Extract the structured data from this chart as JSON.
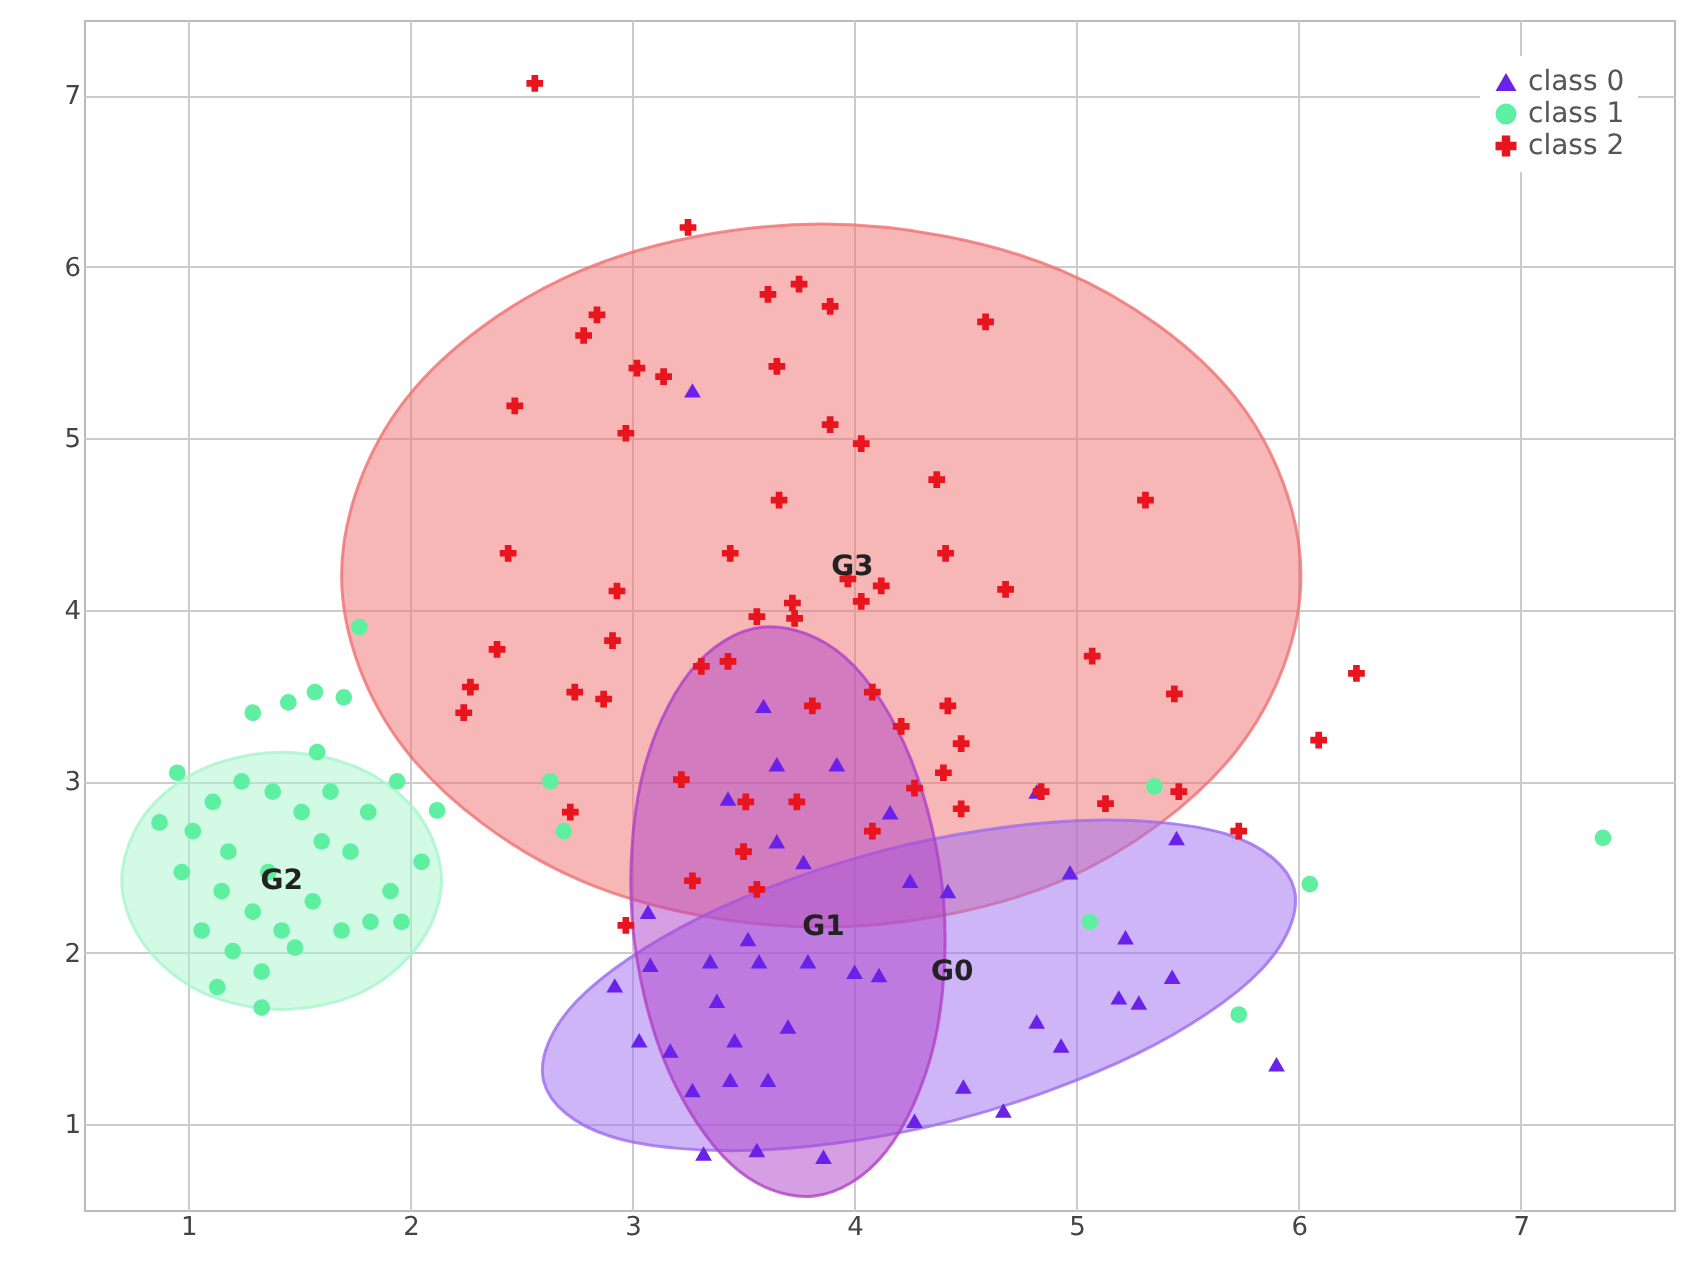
{
  "chart_data": {
    "type": "scatter",
    "xlim": [
      0.53,
      7.69
    ],
    "ylim": [
      0.5,
      7.44
    ],
    "xticks": [
      1,
      2,
      3,
      4,
      5,
      6,
      7
    ],
    "yticks": [
      1,
      2,
      3,
      4,
      5,
      6,
      7
    ],
    "grid": true,
    "legend": "top right",
    "annotations": [
      {
        "text": "G0",
        "x": 4.44,
        "y": 1.89
      },
      {
        "text": "G1",
        "x": 3.86,
        "y": 2.15
      },
      {
        "text": "G2",
        "x": 1.42,
        "y": 2.42
      },
      {
        "text": "G3",
        "x": 3.99,
        "y": 4.25
      }
    ],
    "series": [
      {
        "type": "area",
        "color": "#f07070",
        "x": [
          6.01,
          5.72,
          4.93,
          3.85,
          2.77,
          1.98,
          1.69,
          1.98,
          2.77,
          3.85,
          4.93,
          5.72
        ],
        "values": [
          4.2,
          5.23,
          5.98,
          6.25,
          5.98,
          5.23,
          4.2,
          3.18,
          2.42,
          2.15,
          2.42,
          3.18
        ]
      },
      {
        "type": "area",
        "color": "#9c6cf0",
        "x": [
          5.98,
          5.83,
          5.27,
          4.44,
          3.58,
          2.9,
          2.6,
          2.75,
          3.31,
          4.14,
          5.0,
          5.68
        ],
        "values": [
          2.37,
          1.9,
          1.41,
          1.02,
          0.85,
          0.93,
          1.25,
          1.72,
          2.21,
          2.6,
          2.77,
          2.69
        ]
      },
      {
        "type": "area",
        "color": "#b040c8",
        "x": [
          3.59,
          3.96,
          4.25,
          4.4,
          4.36,
          4.14,
          3.81,
          3.45,
          3.15,
          3.0,
          3.04,
          3.26
        ],
        "values": [
          3.9,
          3.72,
          3.14,
          2.32,
          1.48,
          0.84,
          0.58,
          0.76,
          1.35,
          2.17,
          3.01,
          3.64
        ]
      },
      {
        "type": "area",
        "color": "#a8f5cc",
        "x": [
          2.14,
          2.04,
          1.78,
          1.42,
          1.06,
          0.8,
          0.7,
          0.8,
          1.06,
          1.42,
          1.78,
          2.04
        ],
        "values": [
          2.42,
          2.8,
          3.07,
          3.17,
          3.07,
          2.8,
          2.42,
          2.05,
          1.77,
          1.67,
          1.77,
          2.05
        ]
      },
      {
        "name": "class 0",
        "marker": "triangle",
        "color": "#6a22e8",
        "x": [
          3.27,
          3.59,
          3.65,
          3.43,
          3.92,
          3.77,
          3.65,
          4.16,
          4.82,
          4.97,
          5.45,
          4.42,
          4.25,
          5.22,
          5.43,
          5.19,
          5.28,
          4.82,
          4.93,
          4.49,
          4.67,
          4.27,
          3.86,
          5.9,
          3.79,
          4.0,
          4.11,
          2.92,
          3.07,
          3.35,
          3.52,
          3.38,
          3.57,
          3.17,
          3.03,
          3.46,
          3.7,
          3.27,
          3.44,
          3.61,
          3.56,
          3.32,
          3.08
        ],
        "values": [
          5.28,
          3.44,
          3.1,
          2.9,
          3.1,
          2.53,
          2.65,
          2.82,
          2.94,
          2.47,
          2.67,
          2.36,
          2.42,
          2.09,
          1.86,
          1.74,
          1.71,
          1.6,
          1.46,
          1.22,
          1.08,
          1.02,
          0.81,
          1.35,
          1.95,
          1.89,
          1.87,
          1.81,
          2.24,
          1.95,
          2.08,
          1.72,
          1.95,
          1.43,
          1.49,
          1.49,
          1.57,
          1.2,
          1.26,
          1.26,
          0.85,
          0.83,
          1.93
        ]
      },
      {
        "name": "class 1",
        "marker": "circle",
        "color": "#5ef0a0",
        "x": [
          1.57,
          1.77,
          1.29,
          1.45,
          1.7,
          1.58,
          0.95,
          0.87,
          1.02,
          1.11,
          1.24,
          1.38,
          1.51,
          1.64,
          1.81,
          1.94,
          2.12,
          2.05,
          1.91,
          1.82,
          1.69,
          1.56,
          1.42,
          1.29,
          1.15,
          1.06,
          1.2,
          1.33,
          1.13,
          1.33,
          1.48,
          0.97,
          1.18,
          1.36,
          1.73,
          1.96,
          1.6,
          2.63,
          2.69,
          6.05,
          7.37,
          5.06,
          5.73,
          5.35
        ],
        "values": [
          3.52,
          3.9,
          3.4,
          3.46,
          3.49,
          3.17,
          3.05,
          2.76,
          2.71,
          2.88,
          3.0,
          2.94,
          2.82,
          2.94,
          2.82,
          3.0,
          2.83,
          2.53,
          2.36,
          2.18,
          2.13,
          2.3,
          2.13,
          2.24,
          2.36,
          2.13,
          2.01,
          1.89,
          1.8,
          1.68,
          2.03,
          2.47,
          2.59,
          2.47,
          2.59,
          2.18,
          2.65,
          3.0,
          2.71,
          2.4,
          2.67,
          2.18,
          1.64,
          2.97
        ]
      },
      {
        "name": "class 2",
        "marker": "cross",
        "color": "#e8141e",
        "x": [
          2.56,
          3.25,
          2.84,
          2.78,
          3.02,
          3.14,
          2.47,
          2.97,
          3.61,
          3.75,
          3.89,
          3.65,
          4.59,
          3.89,
          4.03,
          4.37,
          5.31,
          2.44,
          3.66,
          3.44,
          4.41,
          2.93,
          3.97,
          4.12,
          4.68,
          3.56,
          3.72,
          3.73,
          4.03,
          2.39,
          2.91,
          2.27,
          2.24,
          2.74,
          2.87,
          3.31,
          3.43,
          3.81,
          4.08,
          4.42,
          4.21,
          5.07,
          5.44,
          6.26,
          6.09,
          4.48,
          4.4,
          4.27,
          3.22,
          3.51,
          3.74,
          4.84,
          5.13,
          5.46,
          5.73,
          2.72,
          3.27,
          3.5,
          4.08,
          4.48,
          2.97,
          3.56
        ],
        "values": [
          7.07,
          6.23,
          5.72,
          5.6,
          5.41,
          5.36,
          5.19,
          5.03,
          5.84,
          5.9,
          5.77,
          5.42,
          5.68,
          5.08,
          4.97,
          4.76,
          4.64,
          4.33,
          4.64,
          4.33,
          4.33,
          4.11,
          4.18,
          4.14,
          4.12,
          3.96,
          4.04,
          3.95,
          4.05,
          3.77,
          3.82,
          3.55,
          3.4,
          3.52,
          3.48,
          3.67,
          3.7,
          3.44,
          3.52,
          3.44,
          3.32,
          3.73,
          3.51,
          3.63,
          3.24,
          3.22,
          3.05,
          2.96,
          3.01,
          2.88,
          2.88,
          2.94,
          2.87,
          2.94,
          2.71,
          2.82,
          2.42,
          2.59,
          2.71,
          2.84,
          2.16,
          2.37
        ]
      }
    ]
  }
}
